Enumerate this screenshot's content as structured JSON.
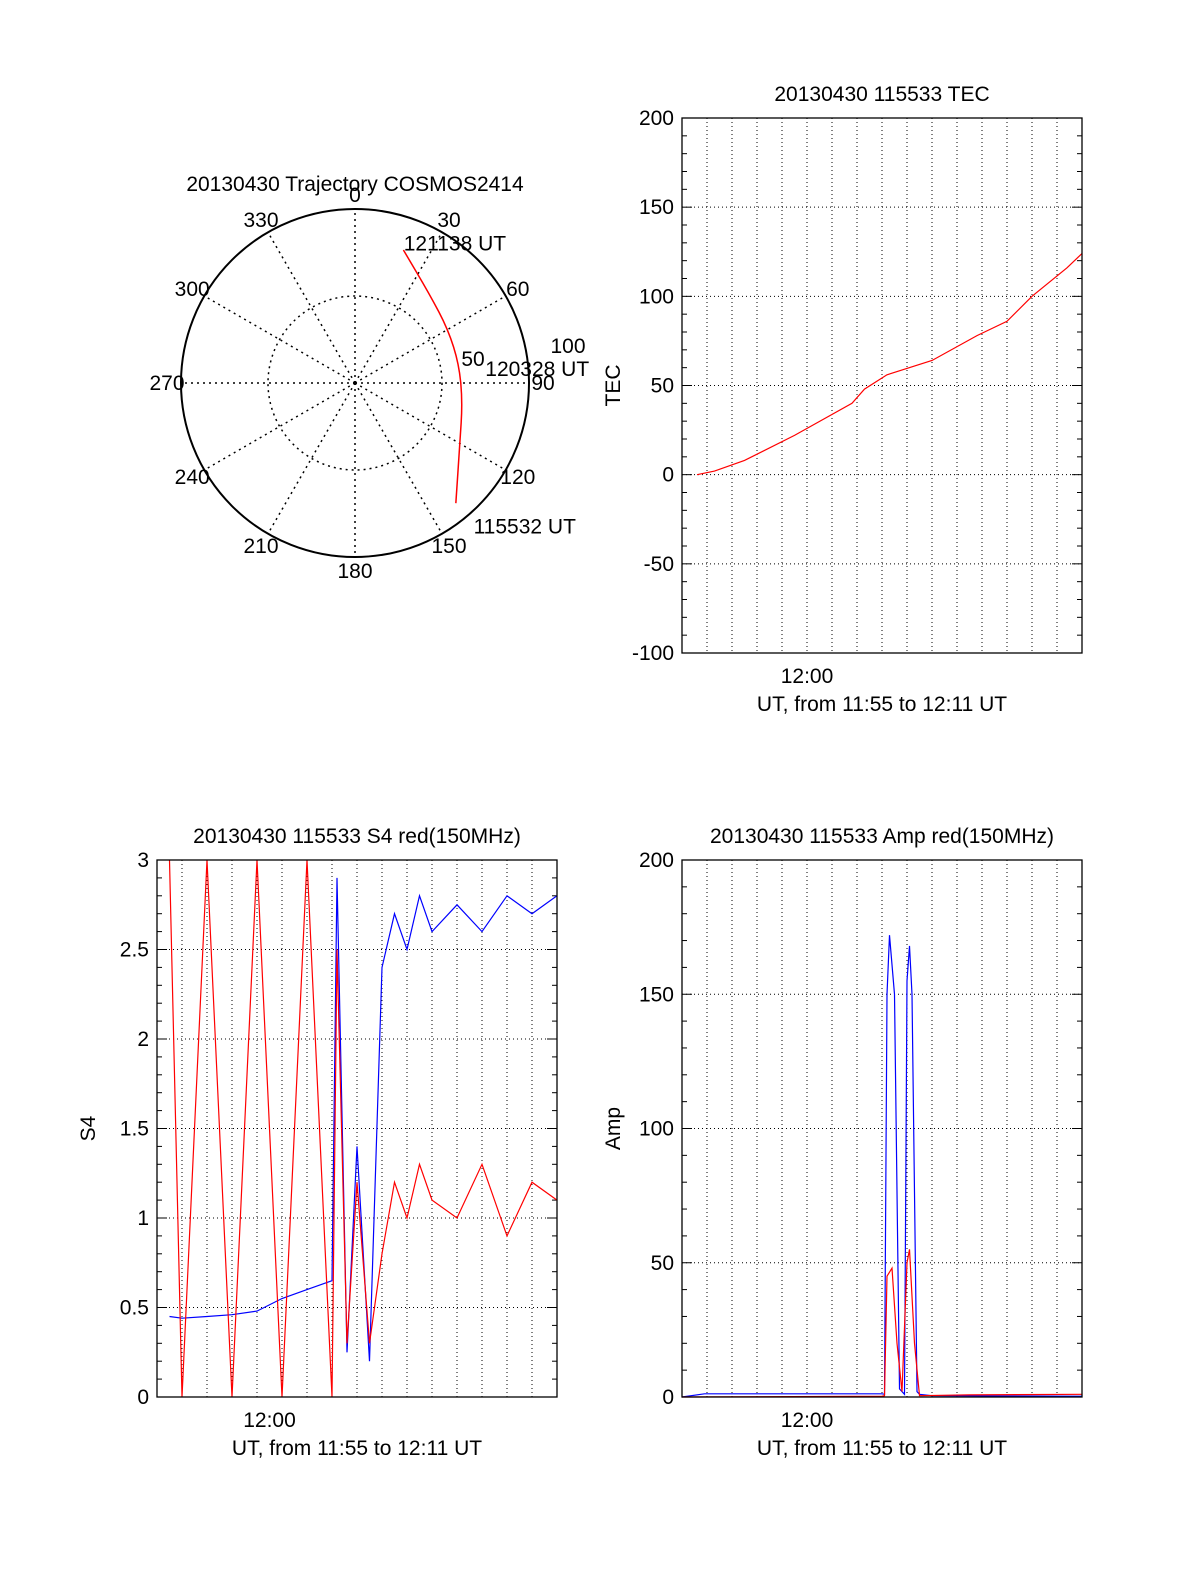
{
  "colors": {
    "red": "#ff0000",
    "blue": "#0000ff",
    "axis": "#000000",
    "grid": "#000000",
    "background": "#ffffff"
  },
  "chart_data": [
    {
      "type": "polar",
      "title": "20130430 Trajectory COSMOS2414",
      "azimuth_labels": [
        "0",
        "30",
        "60",
        "90",
        "120",
        "150",
        "180",
        "210",
        "240",
        "270",
        "300",
        "330"
      ],
      "ring_labels": [
        "50",
        "100"
      ],
      "track": {
        "color": "red",
        "points": [
          {
            "az": 20,
            "zen": 83
          },
          {
            "az": 40,
            "zen": 68
          },
          {
            "az": 60,
            "zen": 63
          },
          {
            "az": 80,
            "zen": 62
          },
          {
            "az": 100,
            "zen": 64
          },
          {
            "az": 120,
            "zen": 71
          },
          {
            "az": 140,
            "zen": 92
          }
        ],
        "labels": [
          {
            "text": "121138 UT",
            "az": 20,
            "zen": 87
          },
          {
            "text": "120328 UT",
            "az": 84,
            "zen": 78
          },
          {
            "text": "115532 UT",
            "az": 140,
            "zen": 110
          }
        ]
      }
    },
    {
      "type": "line",
      "title": "20130430 115533 TEC",
      "xlabel": "UT, from 11:55 to 12:11 UT",
      "ylabel": "TEC",
      "xlim": [
        0,
        16
      ],
      "ylim": [
        -100,
        200
      ],
      "yticks": [
        "200",
        "150",
        "100",
        "50",
        "0",
        "-50",
        "-100"
      ],
      "xticks": [
        {
          "x": 5,
          "label": "12:00"
        }
      ],
      "grid": true,
      "series": [
        {
          "color": "red",
          "x": [
            0.6,
            1.3,
            2.5,
            4.5,
            6.8,
            7.3,
            8.2,
            10,
            11.8,
            13,
            14,
            15.4,
            16
          ],
          "y": [
            0,
            2,
            8,
            22,
            40,
            48,
            56,
            64,
            78,
            86,
            100,
            116,
            124
          ]
        }
      ]
    },
    {
      "type": "line",
      "title": "20130430 115533 S4 red(150MHz)",
      "xlabel": "UT, from 11:55 to 12:11 UT",
      "ylabel": "S4",
      "xlim": [
        0,
        16
      ],
      "ylim": [
        0,
        3
      ],
      "yticks": [
        "3",
        "2.5",
        "2",
        "1.5",
        "1",
        "0.5",
        "0"
      ],
      "xticks": [
        {
          "x": 4.5,
          "label": "12:00"
        }
      ],
      "grid": true,
      "series": [
        {
          "color": "blue",
          "x": [
            0.5,
            1,
            2,
            3,
            4,
            5,
            6,
            7,
            7.2,
            7.6,
            8,
            8.5,
            9,
            9.5,
            10,
            10.5,
            11,
            12,
            13,
            14,
            15,
            16
          ],
          "y": [
            0.45,
            0.44,
            0.45,
            0.46,
            0.48,
            0.55,
            0.6,
            0.65,
            2.9,
            0.25,
            1.4,
            0.2,
            2.4,
            2.7,
            2.5,
            2.8,
            2.6,
            2.75,
            2.6,
            2.8,
            2.7,
            2.8
          ]
        },
        {
          "color": "red",
          "x": [
            0.5,
            1,
            2,
            3,
            4,
            5,
            6,
            7,
            7.2,
            7.6,
            8,
            8.5,
            9,
            9.5,
            10,
            10.5,
            11,
            12,
            13,
            14,
            15,
            16
          ],
          "y": [
            3,
            0,
            3,
            0,
            3,
            0,
            3,
            0,
            2.5,
            0.3,
            1.2,
            0.3,
            0.8,
            1.2,
            1.0,
            1.3,
            1.1,
            1.0,
            1.3,
            0.9,
            1.2,
            1.1
          ]
        }
      ]
    },
    {
      "type": "line",
      "title": "20130430 115533 Amp red(150MHz)",
      "xlabel": "UT, from 11:55 to 12:11 UT",
      "ylabel": "Amp",
      "xlim": [
        0,
        16
      ],
      "ylim": [
        0,
        200
      ],
      "yticks": [
        "200",
        "150",
        "100",
        "50",
        "0"
      ],
      "xticks": [
        {
          "x": 5,
          "label": "12:00"
        }
      ],
      "grid": true,
      "series": [
        {
          "color": "blue",
          "x": [
            0,
            0.9,
            8,
            8.1,
            8.2,
            8.3,
            8.5,
            8.7,
            8.9,
            9.0,
            9.1,
            9.2,
            9.4,
            9.5,
            10,
            16
          ],
          "y": [
            0,
            1.2,
            1.2,
            1,
            150,
            172,
            150,
            3,
            1,
            155,
            168,
            150,
            2,
            1,
            0.5,
            0.3
          ]
        },
        {
          "color": "red",
          "x": [
            0,
            8,
            8.1,
            8.2,
            8.4,
            8.6,
            8.8,
            9.0,
            9.1,
            9.3,
            9.5,
            11.5,
            16
          ],
          "y": [
            0,
            0.3,
            0.5,
            45,
            48,
            20,
            2,
            50,
            55,
            20,
            0.5,
            0.8,
            1
          ]
        }
      ]
    }
  ]
}
